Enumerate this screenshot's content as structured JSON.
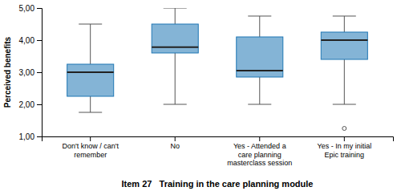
{
  "chart_data": {
    "type": "box",
    "xlabel": "Item 27   Training in the care planning module",
    "ylabel": "Perceived benefits",
    "categories": [
      "Don't know / can't\nremember",
      "No",
      "Yes - Attended a\ncare planning\nmasterclass session",
      "Yes - In my initial\nEpic training"
    ],
    "boxes": [
      {
        "whislo": 1.75,
        "q1": 2.25,
        "med": 3.0,
        "q3": 3.25,
        "whishi": 4.5,
        "fliers": []
      },
      {
        "whislo": 2.0,
        "q1": 3.6,
        "med": 3.78,
        "q3": 4.5,
        "whishi": 5.0,
        "fliers": []
      },
      {
        "whislo": 2.0,
        "q1": 2.85,
        "med": 3.05,
        "q3": 4.1,
        "whishi": 4.75,
        "fliers": []
      },
      {
        "whislo": 2.0,
        "q1": 3.4,
        "med": 4.0,
        "q3": 4.25,
        "whishi": 4.75,
        "fliers": [
          1.25
        ]
      }
    ],
    "ylim": [
      1.0,
      5.0
    ],
    "yticks": [
      {
        "value": 1.0,
        "label": "1,00"
      },
      {
        "value": 2.0,
        "label": "2,00"
      },
      {
        "value": 3.0,
        "label": "3,00"
      },
      {
        "value": 4.0,
        "label": "4,00"
      },
      {
        "value": 5.0,
        "label": "5,00"
      }
    ],
    "grid": false
  }
}
